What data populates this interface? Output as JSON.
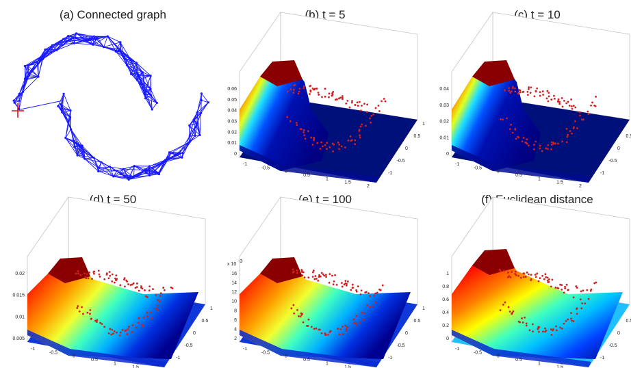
{
  "panels": [
    {
      "title": "(a) Connected graph"
    },
    {
      "title": "(b) t = 5",
      "z_ticks": [
        "0",
        "0.01",
        "0.02",
        "0.03",
        "0.04",
        "0.05",
        "0.06"
      ],
      "x_ticks": [
        "-1",
        "-0.5",
        "0",
        "0.5",
        "1",
        "1.5",
        "2"
      ],
      "y_ticks": [
        "1",
        "0.5",
        "0",
        "-0.5",
        "-1"
      ]
    },
    {
      "title": "(c) t = 10",
      "z_ticks": [
        "0",
        "0.01",
        "0.02",
        "0.03",
        "0.04"
      ],
      "x_ticks": [
        "-1",
        "-0.5",
        "0",
        "0.5",
        "1",
        "1.5",
        "2"
      ],
      "y_ticks": [
        "1",
        "0.5",
        "0",
        "-0.5",
        "-1"
      ]
    },
    {
      "title": "(d) t = 50",
      "z_ticks": [
        "0.005",
        "0.01",
        "0.015",
        "0.02"
      ],
      "x_ticks": [
        "-1",
        "-0.5",
        "0",
        "0.5",
        "1",
        "1.5",
        "2"
      ],
      "y_ticks": [
        "1",
        "0.5",
        "0",
        "-0.5",
        "-1"
      ]
    },
    {
      "title": "(e) t = 100",
      "z_multiplier": "x 10",
      "z_exponent": "-3",
      "z_ticks": [
        "2",
        "4",
        "6",
        "8",
        "10",
        "12",
        "14",
        "16"
      ],
      "x_ticks": [
        "-1",
        "-0.5",
        "0",
        "0.5",
        "1",
        "1.5",
        "2"
      ],
      "y_ticks": [
        "1",
        "0.5",
        "0",
        "-0.5",
        "-1"
      ]
    },
    {
      "title": "(f) Euclidean distance",
      "z_ticks": [
        "0",
        "0.2",
        "0.4",
        "0.6",
        "0.8",
        "1"
      ],
      "x_ticks": [
        "-1",
        "-0.5",
        "0",
        "0.5",
        "1",
        "1.5",
        "2"
      ],
      "y_ticks": [
        "1",
        "0.5",
        "0",
        "-0.5",
        "-1"
      ]
    }
  ],
  "chart_data": [
    {
      "type": "graph",
      "title": "(a) Connected graph",
      "description_nodes": "two-moons point cloud",
      "edge_color": "#1a1aff",
      "source_marker_color": "#e01010"
    },
    {
      "type": "surface3d",
      "title": "(b) t = 5",
      "zlim": [
        0,
        0.06
      ],
      "xlim": [
        -1,
        2
      ],
      "ylim": [
        -1,
        1
      ],
      "peak_value": 0.06
    },
    {
      "type": "surface3d",
      "title": "(c) t = 10",
      "zlim": [
        0,
        0.04
      ],
      "xlim": [
        -1,
        2
      ],
      "ylim": [
        -1,
        1
      ],
      "peak_value": 0.045
    },
    {
      "type": "surface3d",
      "title": "(d) t = 50",
      "zlim": [
        0.005,
        0.02
      ],
      "xlim": [
        -1,
        2
      ],
      "ylim": [
        -1,
        1
      ],
      "peak_value": 0.021
    },
    {
      "type": "surface3d",
      "title": "(e) t = 100",
      "zlim": [
        2,
        16
      ],
      "z_scale": "x 10^-3",
      "xlim": [
        -1,
        2
      ],
      "ylim": [
        -1,
        1
      ],
      "peak_value": 17
    },
    {
      "type": "surface3d",
      "title": "(f) Euclidean distance",
      "zlim": [
        0,
        1
      ],
      "xlim": [
        -1,
        2
      ],
      "ylim": [
        -1,
        1
      ],
      "peak_value": 1
    }
  ],
  "colors": {
    "edge": "#1a1aff",
    "marker": "#e01010",
    "points": "#d02020"
  },
  "colormap": "jet"
}
